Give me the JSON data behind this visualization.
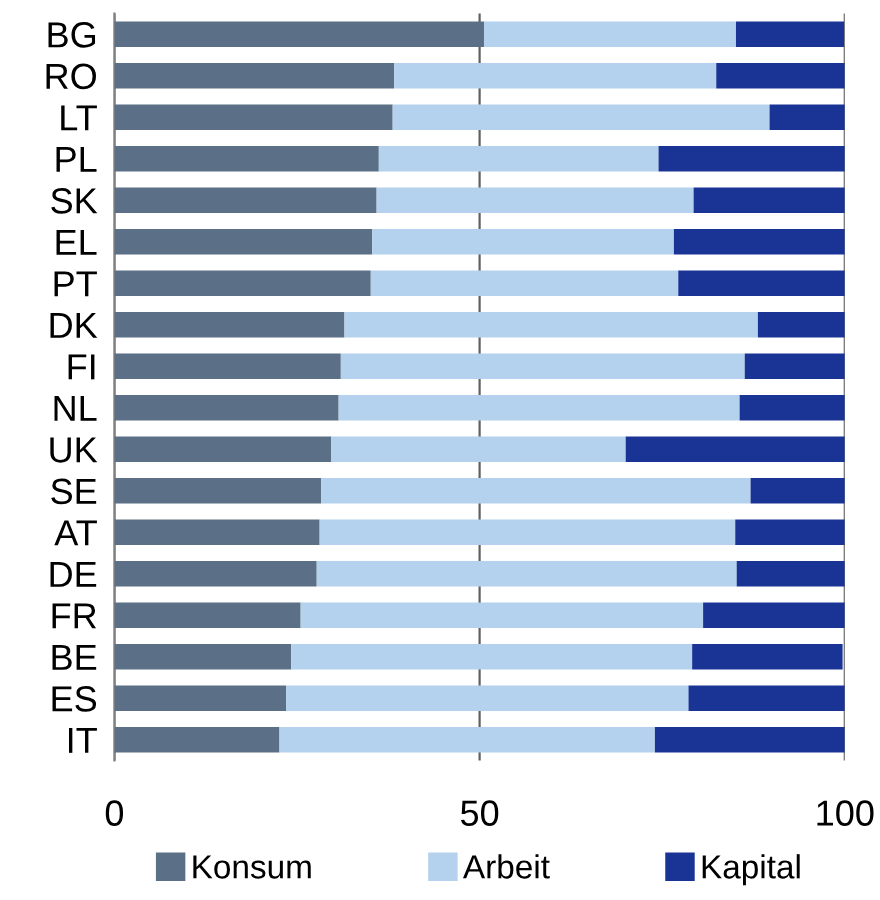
{
  "chart_data": {
    "type": "bar",
    "orientation": "horizontal",
    "stacked": true,
    "categories": [
      "BG",
      "RO",
      "LT",
      "PL",
      "SK",
      "EL",
      "PT",
      "DK",
      "FI",
      "NL",
      "UK",
      "SE",
      "AT",
      "DE",
      "FR",
      "BE",
      "ES",
      "IT"
    ],
    "series": [
      {
        "name": "Konsum",
        "color": "#5b7086",
        "values": [
          50.6,
          38.3,
          38.1,
          36.2,
          35.9,
          35.3,
          35.1,
          31.5,
          31.0,
          30.7,
          29.7,
          28.3,
          28.1,
          27.7,
          25.5,
          24.2,
          23.5,
          22.6
        ]
      },
      {
        "name": "Arbeit",
        "color": "#b4d1ee",
        "values": [
          34.5,
          44.1,
          51.6,
          38.3,
          43.4,
          41.3,
          42.1,
          56.6,
          55.3,
          54.9,
          40.3,
          58.8,
          56.9,
          57.5,
          55.1,
          54.9,
          55.1,
          51.4
        ]
      },
      {
        "name": "Kapital",
        "color": "#1a3496",
        "values": [
          14.8,
          17.6,
          10.3,
          25.5,
          20.7,
          23.4,
          22.8,
          11.9,
          13.7,
          14.4,
          30.0,
          12.9,
          15.0,
          14.8,
          19.4,
          20.6,
          21.4,
          26.0
        ]
      }
    ],
    "xlim": [
      0,
      100
    ],
    "xticks": [
      0,
      50,
      100
    ],
    "grid": "x",
    "legend": "bottom"
  }
}
